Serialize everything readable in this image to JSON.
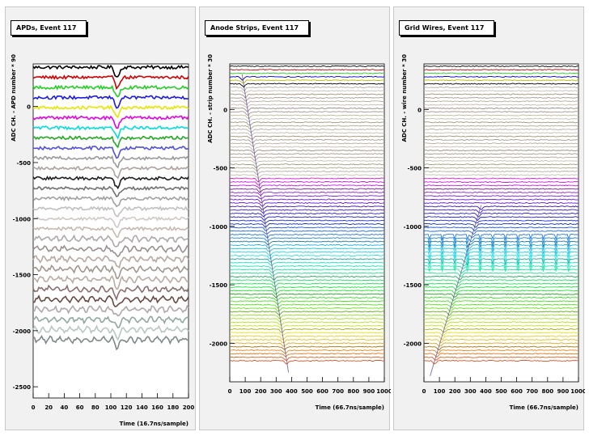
{
  "chart_data": [
    {
      "type": "line",
      "title": "APDs, Event 117",
      "xlabel": "Time (16.7ns/sample)",
      "ylabel": "ADC CH. - APD number * 90",
      "xlim": [
        0,
        200
      ],
      "ylim": [
        -2600,
        380
      ],
      "xticks": [
        0,
        20,
        40,
        60,
        80,
        100,
        120,
        140,
        160,
        180,
        200
      ],
      "yticks": [
        -2500,
        -2000,
        -1500,
        -1000,
        -500,
        0
      ],
      "n_channels": 28,
      "channel_spacing": 90,
      "first_baseline": 350,
      "pulse_x": [
        106
      ],
      "pulse_depth": [
        90
      ],
      "noise_amplitude": 14,
      "palette": [
        "#000000",
        "#d40000",
        "#22d022",
        "#1a1ae6",
        "#e6e600",
        "#e600e6",
        "#00dede",
        "#22aa22",
        "#5050e0",
        "#9a9a9a",
        "#b0a0a0",
        "#202020",
        "#707070",
        "#a0a0a0",
        "#c0c0c0",
        "#d0c8c8",
        "#c8b8b0",
        "#b0a8a8",
        "#9a9090",
        "#b8a8a0",
        "#a09890",
        "#bcaaa4",
        "#8a7070",
        "#6a4a40",
        "#b0a8a8",
        "#90a8a0",
        "#b8c8c0",
        "#808888"
      ]
    },
    {
      "type": "line",
      "title": "Anode Strips, Event 117",
      "xlabel": "Time (66.7ns/sample)",
      "ylabel": "ADC CH. - strip number * 30",
      "xlim": [
        0,
        1000
      ],
      "ylim": [
        -2330,
        390
      ],
      "xticks": [
        0,
        100,
        200,
        300,
        400,
        500,
        600,
        700,
        800,
        900,
        1000
      ],
      "yticks": [
        -2000,
        -1500,
        -1000,
        -500,
        0
      ],
      "n_channels": 85,
      "channel_spacing": 30,
      "first_baseline": 370,
      "track_x": [
        80,
        380
      ],
      "track_y": [
        300,
        -2250
      ],
      "noise_amplitude": 4
    },
    {
      "type": "line",
      "title": "Grid Wires, Event 117",
      "xlabel": "Time (66.7ns/sample)",
      "ylabel": "ADC CH. - wire number * 30",
      "xlim": [
        0,
        1000
      ],
      "ylim": [
        -2330,
        390
      ],
      "xticks": [
        0,
        100,
        200,
        300,
        400,
        500,
        600,
        700,
        800,
        900,
        1000
      ],
      "yticks": [
        -2000,
        -1500,
        -1000,
        -500,
        0
      ],
      "n_channels": 85,
      "channel_spacing": 30,
      "first_baseline": 370,
      "track_x": [
        370,
        40
      ],
      "track_y": [
        -820,
        -2280
      ],
      "spike_band": [
        -1050,
        -1350
      ],
      "noise_amplitude": 4
    }
  ]
}
